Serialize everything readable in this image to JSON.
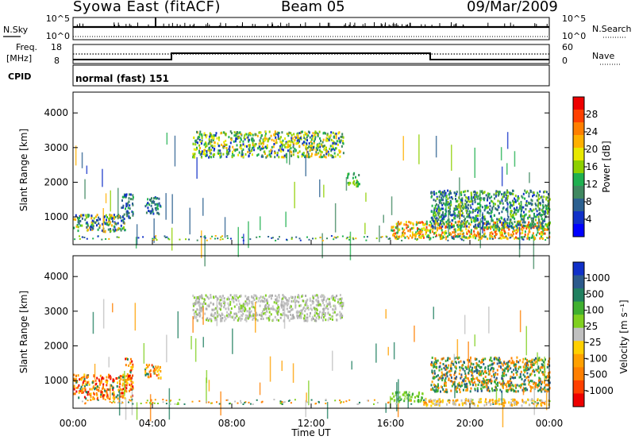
{
  "header": {
    "title": "Syowa East (fitACF)",
    "beam": "Beam 05",
    "date": "09/Mar/2009"
  },
  "top_panels": {
    "nsky_label": "N.Sky",
    "nsearch_label": "N.Search",
    "noise_ticks": [
      "10^5",
      "10^0"
    ],
    "freq_label_1": "Freq.",
    "freq_label_2": "[MHz]",
    "freq_ticks": [
      "18",
      "8"
    ],
    "nave_label": "Nave",
    "nave_ticks": [
      "60",
      "0"
    ],
    "cpid_label": "CPID",
    "cpid_value": "normal (fast) 151"
  },
  "power_colorbar": {
    "label": "Power [dB]",
    "ticks": [
      "28",
      "24",
      "20",
      "16",
      "12",
      "8",
      "4"
    ],
    "colors": [
      "#ee0000",
      "#ff4000",
      "#ff7f00",
      "#ffb000",
      "#e8e800",
      "#8ed000",
      "#20b050",
      "#408860",
      "#2c6090",
      "#1030c8",
      "#0000ff"
    ]
  },
  "velocity_colorbar": {
    "label": "Velocity [m s⁻¹]",
    "ticks": [
      "1000",
      "500",
      "100",
      "25",
      "-25",
      "-100",
      "-500",
      "-1000"
    ],
    "colors": [
      "#1030c8",
      "#2c5a8c",
      "#208060",
      "#40b030",
      "#80d020",
      "#c0c0c0",
      "#ffd000",
      "#ffa000",
      "#ff7f00",
      "#ff4000",
      "#ee0000"
    ]
  },
  "chart_data": [
    {
      "type": "heatmap",
      "name": "power",
      "ylabel": "Slant Range [km]",
      "xlabel": "",
      "x_ticks": [],
      "y_ticks": [
        "4000",
        "3000",
        "2000",
        "1000"
      ],
      "ylim": [
        200,
        4600
      ],
      "xlim_hours": [
        0,
        24
      ],
      "regions": [
        {
          "t0": 6.0,
          "t1": 13.6,
          "r0": 2750,
          "r1": 3500,
          "level": "green-yellow"
        },
        {
          "t0": 0.0,
          "t1": 2.6,
          "r0": 600,
          "r1": 1100,
          "level": "mixed"
        },
        {
          "t0": 2.4,
          "t1": 3.0,
          "r0": 1000,
          "r1": 1700,
          "level": "blue-green"
        },
        {
          "t0": 3.6,
          "t1": 4.4,
          "r0": 1100,
          "r1": 1600,
          "level": "blue-green"
        },
        {
          "t0": 13.8,
          "t1": 14.4,
          "r0": 1900,
          "r1": 2300,
          "level": "green"
        },
        {
          "t0": 16.0,
          "t1": 24.0,
          "r0": 400,
          "r1": 900,
          "level": "orange"
        },
        {
          "t0": 18.0,
          "t1": 24.0,
          "r0": 700,
          "r1": 1800,
          "level": "green-blue"
        }
      ]
    },
    {
      "type": "heatmap",
      "name": "velocity",
      "ylabel": "Slant Range [km]",
      "xlabel": "Time UT",
      "x_ticks": [
        "00:00",
        "04:00",
        "08:00",
        "12:00",
        "16:00",
        "20:00",
        "00:00"
      ],
      "y_ticks": [
        "4000",
        "3000",
        "2000",
        "1000"
      ],
      "ylim": [
        200,
        4600
      ],
      "xlim_hours": [
        0,
        24
      ],
      "regions": [
        {
          "t0": 6.0,
          "t1": 13.6,
          "r0": 2750,
          "r1": 3500,
          "level": "grey"
        },
        {
          "t0": 0.0,
          "t1": 3.0,
          "r0": 500,
          "r1": 1200,
          "level": "orange"
        },
        {
          "t0": 2.6,
          "t1": 3.0,
          "r0": 1000,
          "r1": 1700,
          "level": "orange"
        },
        {
          "t0": 3.6,
          "t1": 4.4,
          "r0": 1100,
          "r1": 1500,
          "level": "orange"
        },
        {
          "t0": 16.0,
          "t1": 17.6,
          "r0": 400,
          "r1": 700,
          "level": "light-green"
        },
        {
          "t0": 18.0,
          "t1": 24.0,
          "r0": 700,
          "r1": 1700,
          "level": "green-orange"
        },
        {
          "t0": 17.6,
          "t1": 24.0,
          "r0": 300,
          "r1": 500,
          "level": "light-orange"
        }
      ]
    }
  ]
}
